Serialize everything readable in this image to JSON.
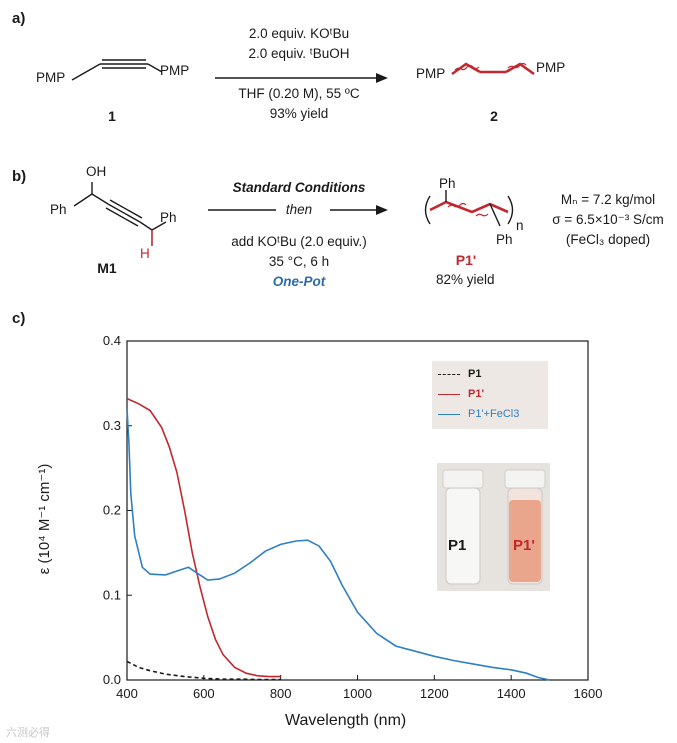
{
  "panel_a": {
    "label": "a)",
    "reactant_group_left": "PMP",
    "reactant_group_right": "PMP",
    "reactant_id": "1",
    "conditions": [
      "2.0 equiv. KOᵗBu",
      "2.0 equiv. ᵗBuOH",
      "THF (0.20 M), 55 ºC",
      "93% yield"
    ],
    "product_group_left": "PMP",
    "product_group_right": "PMP",
    "product_id": "2"
  },
  "panel_b": {
    "label": "b)",
    "monomer_oh": "OH",
    "monomer_ph_left": "Ph",
    "monomer_ph_right": "Ph",
    "monomer_h": "H",
    "monomer_id": "M1",
    "cond_title": "Standard Conditions",
    "cond_then": "then",
    "cond_add": "add KOᵗBu (2.0 equiv.)",
    "cond_temp": "35 °C, 6 h",
    "cond_onepot": "One-Pot",
    "polymer_ph_top": "Ph",
    "polymer_ph_bottom": "Ph",
    "polymer_n": "n",
    "polymer_id": "P1'",
    "polymer_yield": "82% yield",
    "props": [
      "Mₙ = 7.2 kg/mol",
      "σ = 6.5×10⁻³ S/cm",
      "(FeCl₃ doped)"
    ]
  },
  "panel_c": {
    "label": "c)",
    "photo_labels": [
      "P1",
      "P1'"
    ]
  },
  "watermark": "六测必得",
  "colors": {
    "red": "#c0282d",
    "blue": "#2e7fc4",
    "black": "#1a1a1a",
    "legend_bg": "#ede8e3",
    "onepot": "#2e6ca8"
  },
  "chart_data": {
    "type": "line",
    "xlabel": "Wavelength (nm)",
    "ylabel": "ε (10⁴ M⁻¹ cm⁻¹)",
    "xlim": [
      400,
      1600
    ],
    "ylim": [
      0,
      0.4
    ],
    "xticks": [
      400,
      600,
      800,
      1000,
      1200,
      1400,
      1600
    ],
    "yticks": [
      0.0,
      0.1,
      0.2,
      0.3,
      0.4
    ],
    "legend_position": "top-right",
    "series": [
      {
        "name": "P1",
        "style": "dashed",
        "color": "#1a1a1a",
        "x": [
          400,
          430,
          460,
          500,
          550,
          600,
          650,
          700,
          750,
          800
        ],
        "y": [
          0.022,
          0.015,
          0.011,
          0.007,
          0.004,
          0.002,
          0.001,
          0.001,
          0.0005,
          0.0005
        ]
      },
      {
        "name": "P1'",
        "style": "solid",
        "color": "#c0282d",
        "x": [
          400,
          430,
          460,
          490,
          510,
          530,
          550,
          570,
          590,
          610,
          630,
          650,
          680,
          710,
          740,
          770,
          800
        ],
        "y": [
          0.332,
          0.326,
          0.318,
          0.298,
          0.275,
          0.245,
          0.2,
          0.15,
          0.11,
          0.075,
          0.048,
          0.03,
          0.015,
          0.008,
          0.005,
          0.004,
          0.004
        ]
      },
      {
        "name": "P1'+FeCl3",
        "style": "solid",
        "color": "#2e7fc4",
        "x": [
          400,
          405,
          410,
          420,
          440,
          460,
          500,
          540,
          560,
          580,
          610,
          640,
          680,
          720,
          760,
          800,
          840,
          870,
          900,
          930,
          960,
          1000,
          1050,
          1100,
          1150,
          1200,
          1250,
          1300,
          1350,
          1400,
          1440,
          1470,
          1500
        ],
        "y": [
          0.32,
          0.28,
          0.22,
          0.17,
          0.133,
          0.125,
          0.124,
          0.13,
          0.133,
          0.127,
          0.118,
          0.119,
          0.126,
          0.138,
          0.152,
          0.16,
          0.164,
          0.165,
          0.158,
          0.14,
          0.112,
          0.08,
          0.055,
          0.04,
          0.034,
          0.028,
          0.023,
          0.019,
          0.015,
          0.012,
          0.008,
          0.003,
          0.0
        ]
      }
    ]
  }
}
